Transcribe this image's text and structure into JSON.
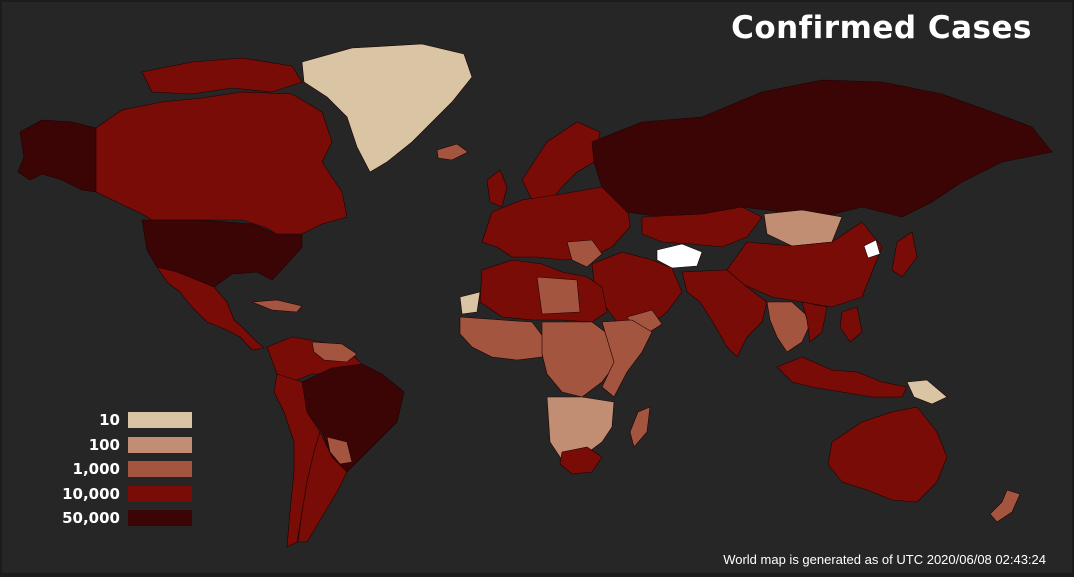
{
  "title": "Confirmed Cases",
  "footer": "World map is generated as of UTC 2020/06/08 02:43:24",
  "legend": [
    {
      "label": "10",
      "color": "#d9c4a3"
    },
    {
      "label": "100",
      "color": "#c18d73"
    },
    {
      "label": "1,000",
      "color": "#a4553f"
    },
    {
      "label": "10,000",
      "color": "#7a0c08"
    },
    {
      "label": "50,000",
      "color": "#3c0505"
    }
  ],
  "colors": {
    "background": "#262626",
    "no_data": "#ffffff"
  }
}
